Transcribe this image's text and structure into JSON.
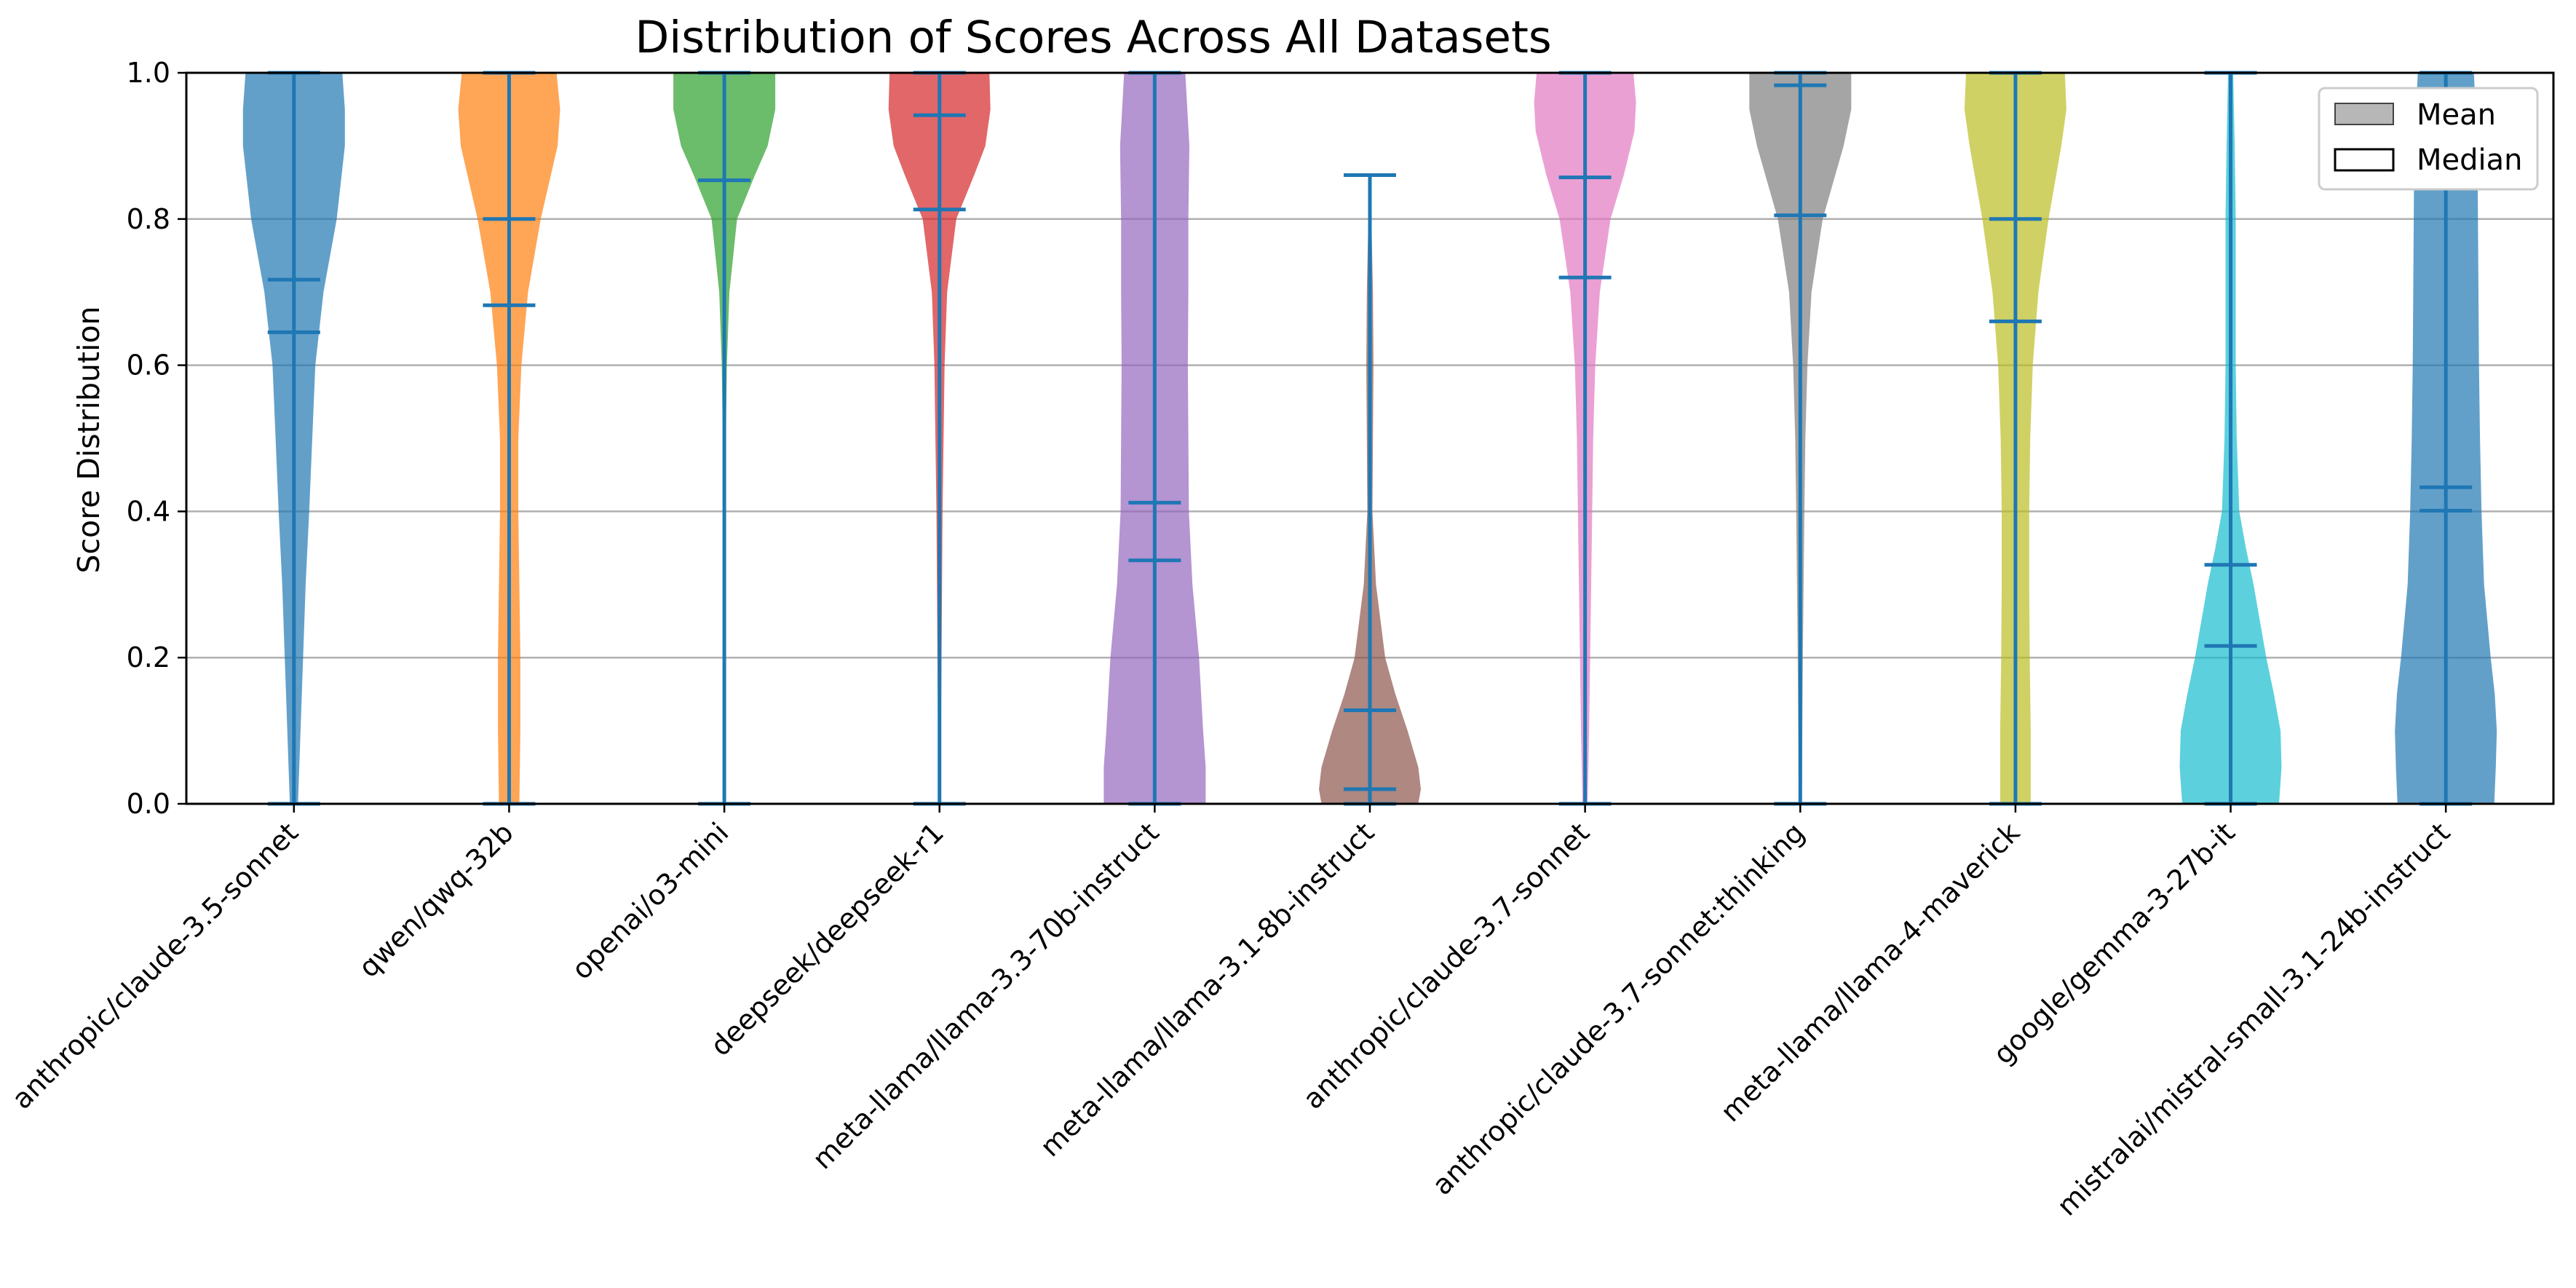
{
  "chart_data": {
    "type": "violin",
    "title": "Distribution of Scores Across All Datasets",
    "xlabel": "",
    "ylabel": "Score Distribution",
    "ylim": [
      0,
      1
    ],
    "yticks": [
      "0.0",
      "0.2",
      "0.4",
      "0.6",
      "0.8",
      "1.0"
    ],
    "grid": "horizontal",
    "legend_position": "top-right",
    "legend": [
      {
        "label": "Mean",
        "style": "filled",
        "color": "#999999"
      },
      {
        "label": "Median",
        "style": "outline",
        "color": "#000000"
      }
    ],
    "categories": [
      "anthropic/claude-3.5-sonnet",
      "qwen/qwq-32b",
      "openai/o3-mini",
      "deepseek/deepseek-r1",
      "meta-llama/llama-3.3-70b-instruct",
      "meta-llama/llama-3.1-8b-instruct",
      "anthropic/claude-3.7-sonnet",
      "anthropic/claude-3.7-sonnet:thinking",
      "meta-llama/llama-4-maverick",
      "google/gemma-3-27b-it",
      "mistralai/mistral-small-3.1-24b-instruct"
    ],
    "series": [
      {
        "color": "#1f77b4",
        "min": 0.0,
        "max": 1.0,
        "mean": 0.645,
        "median": 0.717,
        "density": [
          [
            0,
            0.08
          ],
          [
            0.1,
            0.13
          ],
          [
            0.2,
            0.18
          ],
          [
            0.3,
            0.23
          ],
          [
            0.4,
            0.3
          ],
          [
            0.5,
            0.36
          ],
          [
            0.6,
            0.42
          ],
          [
            0.7,
            0.58
          ],
          [
            0.8,
            0.84
          ],
          [
            0.9,
            1.0
          ],
          [
            0.95,
            1.0
          ],
          [
            1.0,
            0.95
          ]
        ]
      },
      {
        "color": "#ff7f0e",
        "min": 0.0,
        "max": 1.0,
        "mean": 0.682,
        "median": 0.8,
        "density": [
          [
            0,
            0.2
          ],
          [
            0.1,
            0.22
          ],
          [
            0.2,
            0.22
          ],
          [
            0.3,
            0.2
          ],
          [
            0.4,
            0.18
          ],
          [
            0.5,
            0.18
          ],
          [
            0.6,
            0.24
          ],
          [
            0.7,
            0.37
          ],
          [
            0.8,
            0.62
          ],
          [
            0.9,
            0.95
          ],
          [
            0.95,
            1.0
          ],
          [
            1.0,
            0.93
          ]
        ]
      },
      {
        "color": "#2ca02c",
        "min": 0.0,
        "max": 1.0,
        "mean": 0.853,
        "median": 1.0,
        "density": [
          [
            0,
            0.02
          ],
          [
            0.2,
            0.02
          ],
          [
            0.4,
            0.02
          ],
          [
            0.5,
            0.03
          ],
          [
            0.6,
            0.05
          ],
          [
            0.7,
            0.1
          ],
          [
            0.8,
            0.25
          ],
          [
            0.86,
            0.6
          ],
          [
            0.9,
            0.85
          ],
          [
            0.95,
            1.0
          ],
          [
            1.0,
            1.0
          ]
        ]
      },
      {
        "color": "#d62728",
        "min": 0.0,
        "max": 1.0,
        "mean": 0.813,
        "median": 0.942,
        "density": [
          [
            0,
            0.02
          ],
          [
            0.2,
            0.04
          ],
          [
            0.4,
            0.06
          ],
          [
            0.5,
            0.08
          ],
          [
            0.6,
            0.1
          ],
          [
            0.7,
            0.15
          ],
          [
            0.8,
            0.33
          ],
          [
            0.86,
            0.68
          ],
          [
            0.9,
            0.9
          ],
          [
            0.95,
            1.0
          ],
          [
            1.0,
            0.98
          ]
        ]
      },
      {
        "color": "#9467bd",
        "min": 0.0,
        "max": 1.0,
        "mean": 0.412,
        "median": 0.333,
        "density": [
          [
            0,
            1.0
          ],
          [
            0.05,
            1.0
          ],
          [
            0.1,
            0.95
          ],
          [
            0.2,
            0.87
          ],
          [
            0.3,
            0.74
          ],
          [
            0.4,
            0.67
          ],
          [
            0.5,
            0.66
          ],
          [
            0.6,
            0.65
          ],
          [
            0.7,
            0.66
          ],
          [
            0.8,
            0.66
          ],
          [
            0.9,
            0.68
          ],
          [
            1.0,
            0.6
          ]
        ]
      },
      {
        "color": "#8c564b",
        "min": 0.0,
        "max": 0.86,
        "mean": 0.128,
        "median": 0.02,
        "density": [
          [
            0,
            0.95
          ],
          [
            0.02,
            1.0
          ],
          [
            0.05,
            0.95
          ],
          [
            0.1,
            0.74
          ],
          [
            0.15,
            0.5
          ],
          [
            0.2,
            0.3
          ],
          [
            0.3,
            0.12
          ],
          [
            0.4,
            0.05
          ],
          [
            0.5,
            0.06
          ],
          [
            0.6,
            0.07
          ],
          [
            0.7,
            0.06
          ],
          [
            0.8,
            0.03
          ],
          [
            0.86,
            0.0
          ]
        ]
      },
      {
        "color": "#e377c2",
        "min": 0.0,
        "max": 1.0,
        "mean": 0.72,
        "median": 0.857,
        "density": [
          [
            0,
            0.05
          ],
          [
            0.1,
            0.08
          ],
          [
            0.2,
            0.1
          ],
          [
            0.3,
            0.12
          ],
          [
            0.4,
            0.14
          ],
          [
            0.5,
            0.16
          ],
          [
            0.6,
            0.2
          ],
          [
            0.7,
            0.29
          ],
          [
            0.8,
            0.5
          ],
          [
            0.86,
            0.76
          ],
          [
            0.92,
            0.97
          ],
          [
            0.96,
            1.0
          ],
          [
            1.0,
            0.95
          ]
        ]
      },
      {
        "color": "#7f7f7f",
        "min": 0.0,
        "max": 1.0,
        "mean": 0.805,
        "median": 0.983,
        "density": [
          [
            0,
            0.03
          ],
          [
            0.2,
            0.05
          ],
          [
            0.4,
            0.08
          ],
          [
            0.5,
            0.1
          ],
          [
            0.6,
            0.14
          ],
          [
            0.7,
            0.22
          ],
          [
            0.8,
            0.44
          ],
          [
            0.9,
            0.85
          ],
          [
            0.95,
            1.0
          ],
          [
            1.0,
            1.0
          ]
        ]
      },
      {
        "color": "#bcbd22",
        "min": 0.0,
        "max": 1.0,
        "mean": 0.66,
        "median": 0.8,
        "density": [
          [
            0,
            0.3
          ],
          [
            0.1,
            0.3
          ],
          [
            0.2,
            0.28
          ],
          [
            0.3,
            0.27
          ],
          [
            0.4,
            0.27
          ],
          [
            0.5,
            0.29
          ],
          [
            0.6,
            0.34
          ],
          [
            0.7,
            0.45
          ],
          [
            0.8,
            0.65
          ],
          [
            0.9,
            0.9
          ],
          [
            0.95,
            1.0
          ],
          [
            1.0,
            0.97
          ]
        ]
      },
      {
        "color": "#17becf",
        "min": 0.0,
        "max": 1.0,
        "mean": 0.216,
        "median": 0.327,
        "density": [
          [
            0,
            0.95
          ],
          [
            0.05,
            1.0
          ],
          [
            0.1,
            0.98
          ],
          [
            0.15,
            0.85
          ],
          [
            0.2,
            0.7
          ],
          [
            0.3,
            0.45
          ],
          [
            0.35,
            0.3
          ],
          [
            0.4,
            0.17
          ],
          [
            0.5,
            0.12
          ],
          [
            0.6,
            0.1
          ],
          [
            0.7,
            0.1
          ],
          [
            0.8,
            0.1
          ],
          [
            0.9,
            0.08
          ],
          [
            1.0,
            0.05
          ]
        ]
      },
      {
        "color": "#1f77b4",
        "min": 0.0,
        "max": 1.0,
        "mean": 0.401,
        "median": 0.433,
        "density": [
          [
            0,
            0.95
          ],
          [
            0.05,
            0.98
          ],
          [
            0.1,
            1.0
          ],
          [
            0.15,
            0.96
          ],
          [
            0.2,
            0.88
          ],
          [
            0.3,
            0.75
          ],
          [
            0.4,
            0.7
          ],
          [
            0.5,
            0.67
          ],
          [
            0.6,
            0.65
          ],
          [
            0.7,
            0.64
          ],
          [
            0.8,
            0.63
          ],
          [
            0.9,
            0.62
          ],
          [
            1.0,
            0.55
          ]
        ]
      }
    ]
  }
}
